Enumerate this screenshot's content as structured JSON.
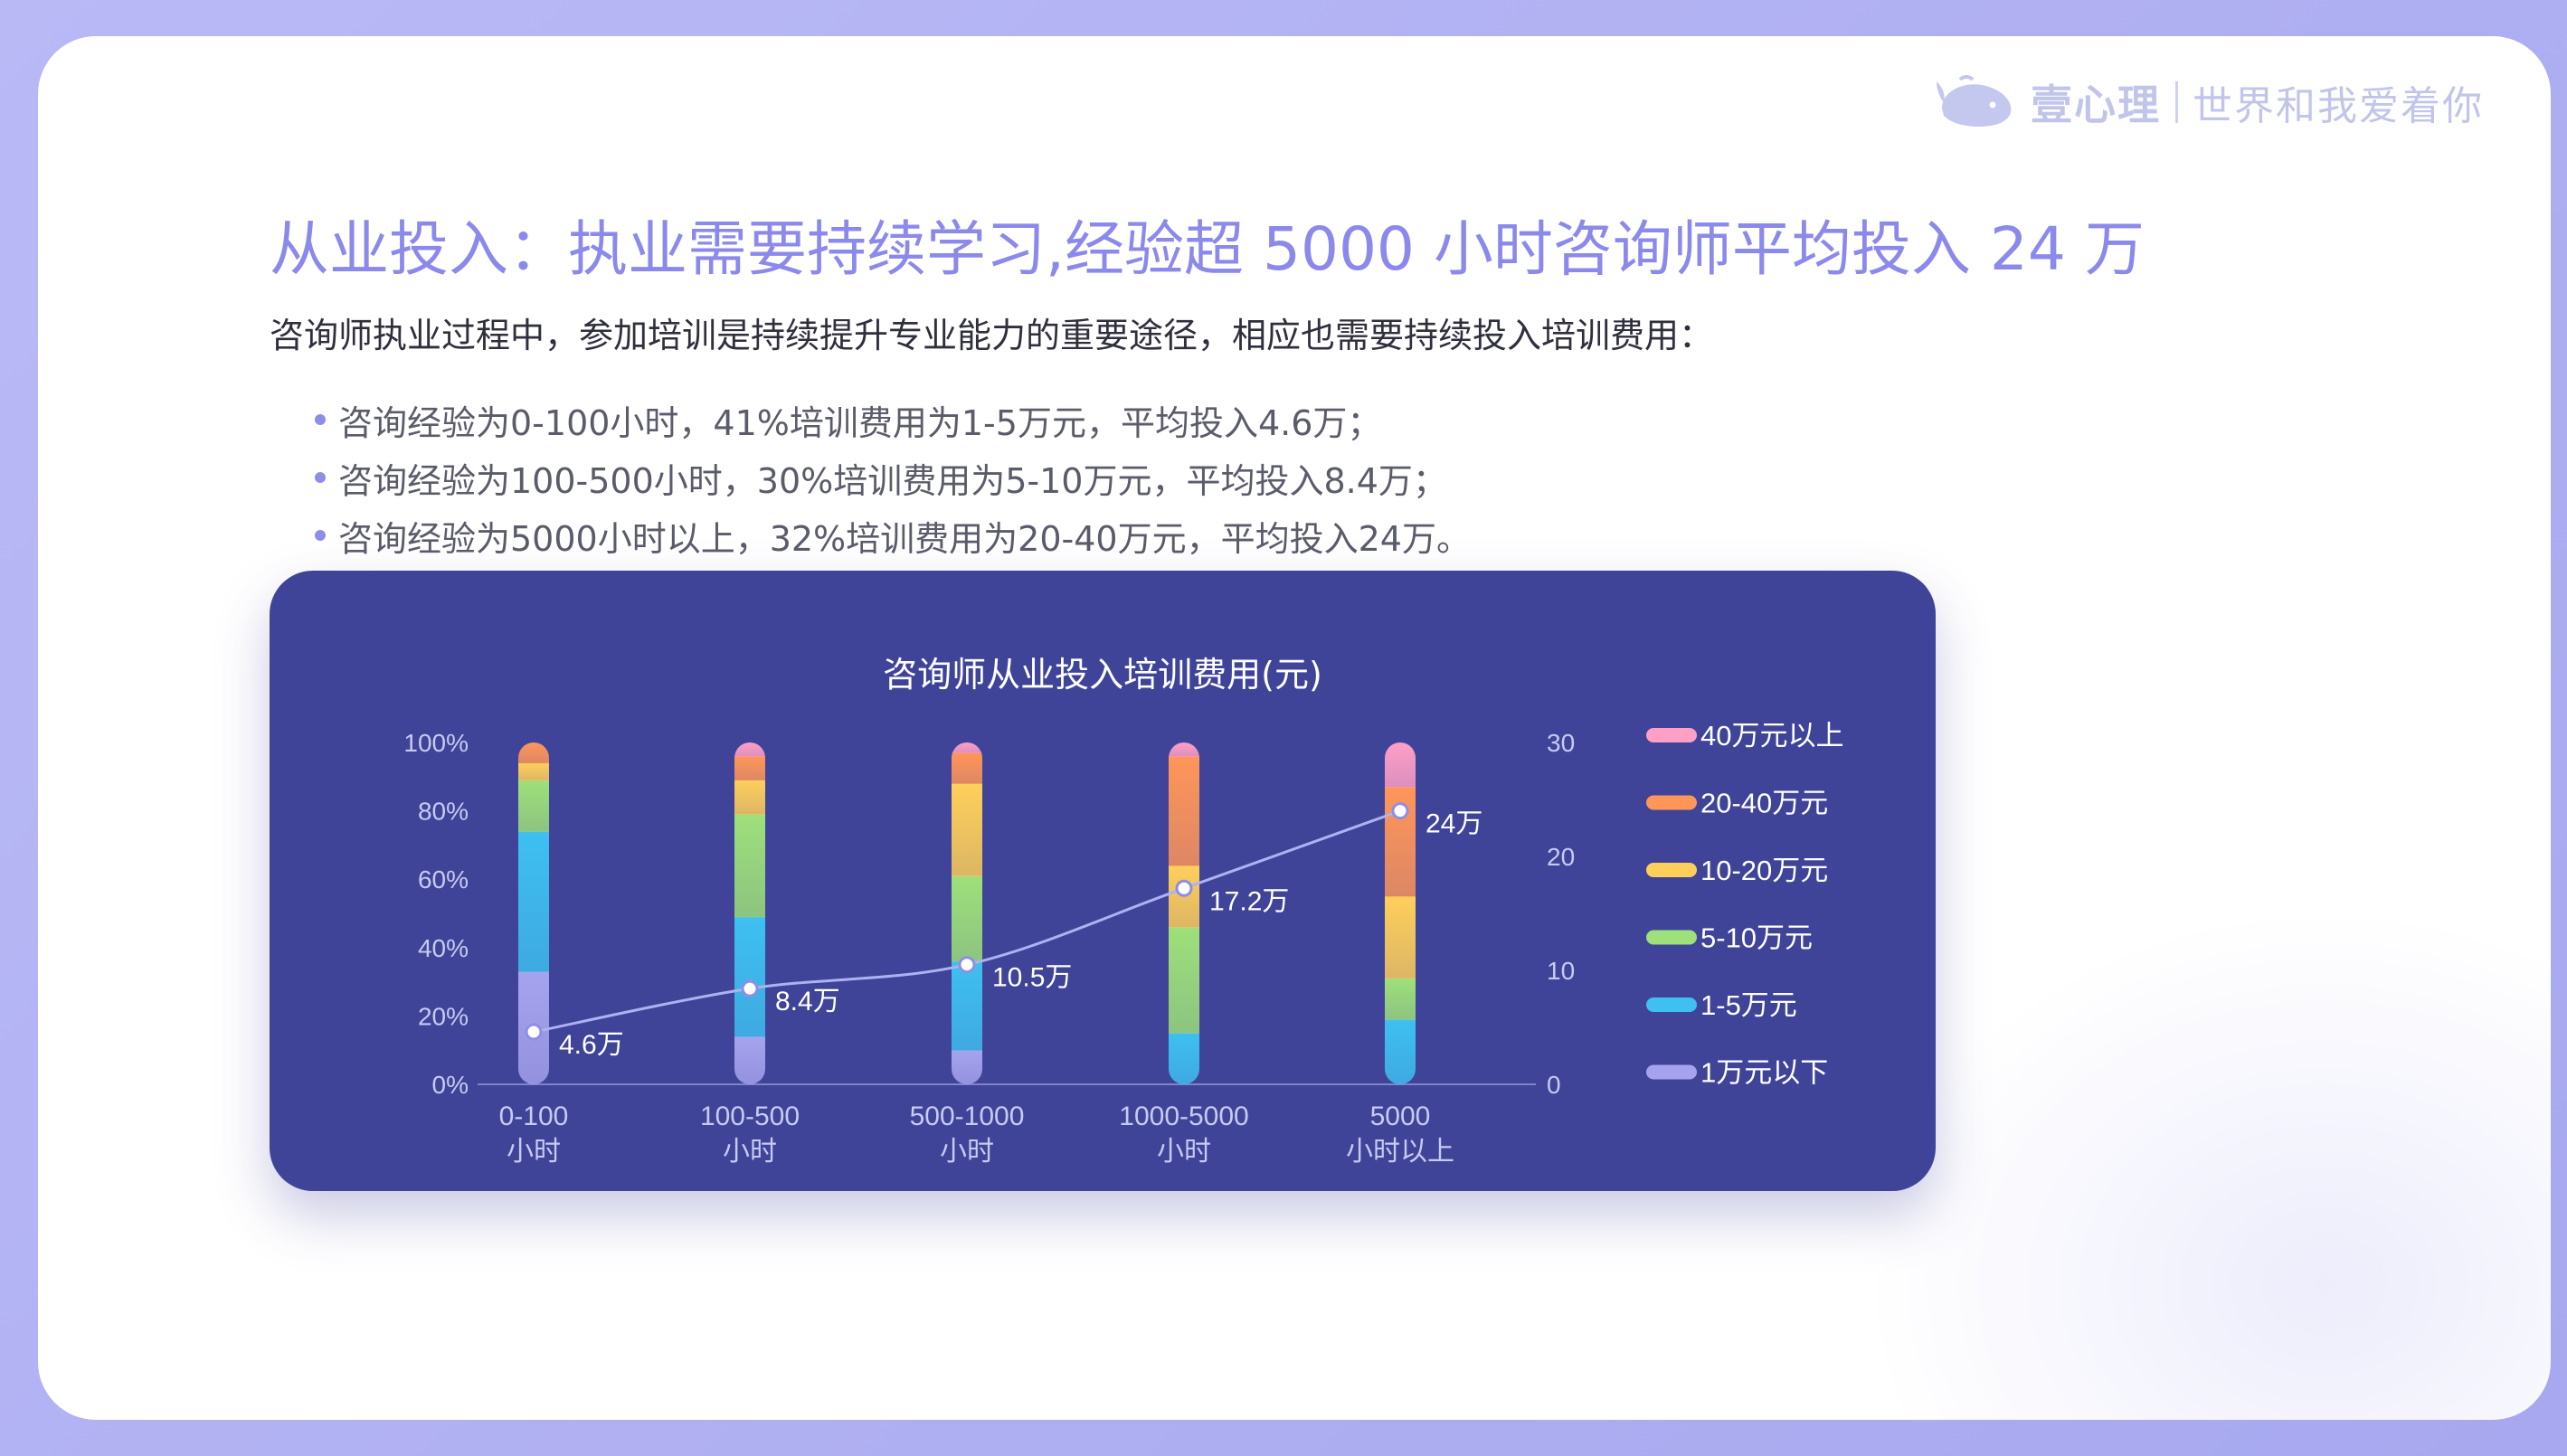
{
  "brand": {
    "name": "壹心理",
    "slogan": "世界和我爱着你",
    "logo_icon": "whale-icon"
  },
  "title": "从业投入：执业需要持续学习,经验超 5000 小时咨询师平均投入 24 万",
  "subtitle": "咨询师执业过程中，参加培训是持续提升专业能力的重要途径，相应也需要持续投入培训费用：",
  "bullets": [
    "咨询经验为0-100小时，41%培训费用为1-5万元，平均投入4.6万；",
    "咨询经验为100-500小时，30%培训费用为5-10万元，平均投入8.4万；",
    "咨询经验为5000小时以上，32%培训费用为20-40万元，平均投入24万。"
  ],
  "colors": {
    "title": "#8b89ec",
    "panel": "#3f4499",
    "bullet": "#8f8ee6"
  },
  "chart_data": {
    "type": "bar",
    "stacked": true,
    "title": "咨询师从业投入培训费用(元)",
    "categories": [
      [
        "0-100",
        "小时"
      ],
      [
        "100-500",
        "小时"
      ],
      [
        "500-1000",
        "小时"
      ],
      [
        "1000-5000",
        "小时"
      ],
      [
        "5000",
        "小时以上"
      ]
    ],
    "y_left": {
      "ticks": [
        "0%",
        "20%",
        "40%",
        "60%",
        "80%",
        "100%"
      ],
      "range": [
        0,
        100
      ]
    },
    "y_right": {
      "ticks": [
        "0",
        "10",
        "20",
        "30"
      ],
      "range": [
        0,
        30
      ]
    },
    "series": [
      {
        "name": "1万元以下",
        "color": "#a6a3ee",
        "values": [
          33,
          14,
          10,
          0,
          0
        ]
      },
      {
        "name": "1-5万元",
        "color": "#3ec0f0",
        "values": [
          41,
          35,
          26,
          15,
          19
        ]
      },
      {
        "name": "5-10万元",
        "color": "#9ee07a",
        "values": [
          15,
          30,
          25,
          31,
          12
        ]
      },
      {
        "name": "10-20万元",
        "color": "#ffcf5a",
        "values": [
          5,
          10,
          27,
          18,
          24
        ]
      },
      {
        "name": "20-40万元",
        "color": "#ff9659",
        "values": [
          6,
          7,
          9,
          32,
          32
        ]
      },
      {
        "name": "40万元以上",
        "color": "#ff9fc6",
        "values": [
          0,
          4,
          3,
          4,
          13
        ]
      }
    ],
    "line": {
      "name": "平均投入",
      "values": [
        4.6,
        8.4,
        10.5,
        17.2,
        24
      ],
      "labels": [
        "4.6万",
        "8.4万",
        "10.5万",
        "17.2万",
        "24万"
      ]
    },
    "legend_order": [
      "40万元以上",
      "20-40万元",
      "10-20万元",
      "5-10万元",
      "1-5万元",
      "1万元以下"
    ],
    "legend_position": "right",
    "grid": false
  }
}
